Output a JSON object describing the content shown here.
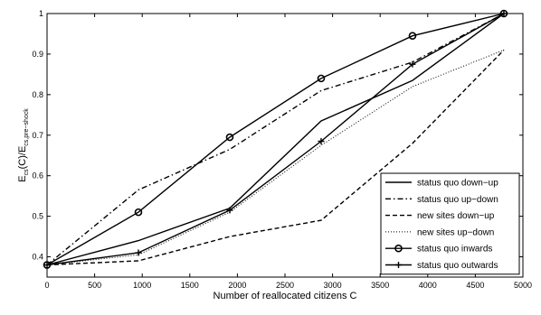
{
  "chart_data": {
    "type": "line",
    "title": "",
    "xlabel": "Number of reallocated citizens C",
    "ylabel": {
      "main": "E",
      "main_sub": "cs",
      "mid": "(C)/E",
      "mid_sub": "cs,pre−shock"
    },
    "xlim": [
      0,
      5000
    ],
    "ylim": [
      0.35,
      1.0
    ],
    "xticks": [
      0,
      500,
      1000,
      1500,
      2000,
      2500,
      3000,
      3500,
      4000,
      4500,
      5000
    ],
    "yticks": [
      0.4,
      0.5,
      0.6,
      0.7,
      0.8,
      0.9,
      1.0
    ],
    "ytick_labels": [
      "0.4",
      "0.5",
      "0.6",
      "0.7",
      "0.8",
      "0.9",
      "1"
    ],
    "grid": false,
    "legend_position": "bottom-right",
    "series": [
      {
        "name": "status quo down−up",
        "style": "solid",
        "marker": "none",
        "color": "#000000",
        "x": [
          0,
          960,
          1920,
          2880,
          3840,
          4800
        ],
        "y": [
          0.38,
          0.44,
          0.52,
          0.735,
          0.835,
          1.0
        ]
      },
      {
        "name": "status quo up−down",
        "style": "dashdot",
        "marker": "none",
        "color": "#000000",
        "x": [
          0,
          960,
          1920,
          2880,
          3840,
          4800
        ],
        "y": [
          0.38,
          0.565,
          0.665,
          0.81,
          0.88,
          1.0
        ]
      },
      {
        "name": "new sites down−up",
        "style": "dashed",
        "marker": "none",
        "color": "#000000",
        "x": [
          0,
          960,
          1920,
          2880,
          3840,
          4800
        ],
        "y": [
          0.38,
          0.39,
          0.45,
          0.49,
          0.68,
          0.91
        ]
      },
      {
        "name": "new sites up−down",
        "style": "dotted",
        "marker": "none",
        "color": "#000000",
        "x": [
          0,
          960,
          1920,
          2880,
          3840,
          4800
        ],
        "y": [
          0.38,
          0.405,
          0.51,
          0.675,
          0.82,
          0.91
        ]
      },
      {
        "name": "status quo inwards",
        "style": "solid",
        "marker": "circle",
        "color": "#000000",
        "x": [
          0,
          960,
          1920,
          2880,
          3840,
          4800
        ],
        "y": [
          0.38,
          0.51,
          0.695,
          0.84,
          0.945,
          1.0
        ]
      },
      {
        "name": "status quo outwards",
        "style": "solid",
        "marker": "plus",
        "color": "#000000",
        "x": [
          0,
          960,
          1920,
          2880,
          3840,
          4800
        ],
        "y": [
          0.38,
          0.41,
          0.515,
          0.685,
          0.875,
          1.0
        ]
      }
    ]
  }
}
